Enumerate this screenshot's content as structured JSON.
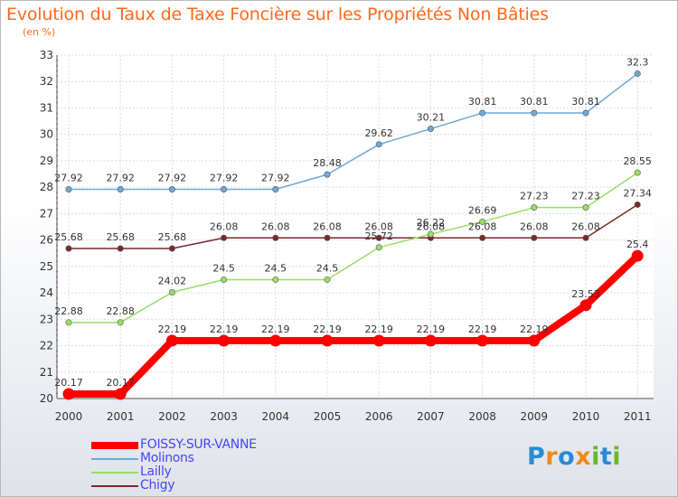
{
  "chart_data": {
    "type": "line",
    "title": "Evolution du Taux de Taxe Foncière sur les Propriétés Non Bâties",
    "ylabel": "(en %)",
    "xlabel": "",
    "ylim": [
      20,
      33
    ],
    "yticks": [
      "20",
      "21",
      "22",
      "23",
      "24",
      "25",
      "26",
      "27",
      "28",
      "29",
      "30",
      "31",
      "32",
      "33"
    ],
    "categories": [
      "2000",
      "2001",
      "2002",
      "2003",
      "2004",
      "2005",
      "2006",
      "2007",
      "2008",
      "2009",
      "2010",
      "2011"
    ],
    "grid": true,
    "legend_position": "bottom-left",
    "series": [
      {
        "name": "FOISSY-SUR-VANNE",
        "color": "#ff0000",
        "values": [
          20.17,
          20.17,
          22.19,
          22.19,
          22.19,
          22.19,
          22.19,
          22.19,
          22.19,
          22.19,
          23.53,
          25.4
        ],
        "labels": [
          "20.17",
          "20.17",
          "22.19",
          "22.19",
          "22.19",
          "22.19",
          "22.19",
          "22.19",
          "22.19",
          "22.19",
          "23.53",
          "25.4"
        ]
      },
      {
        "name": "Molinons",
        "color": "#6fa9d8",
        "values": [
          27.92,
          27.92,
          27.92,
          27.92,
          27.92,
          28.48,
          29.62,
          30.21,
          30.81,
          30.81,
          30.81,
          32.3
        ],
        "labels": [
          "27.92",
          "27.92",
          "27.92",
          "27.92",
          "27.92",
          "28.48",
          "29.62",
          "30.21",
          "30.81",
          "30.81",
          "30.81",
          "32.3"
        ]
      },
      {
        "name": "Lailly",
        "color": "#99dd66",
        "values": [
          22.88,
          22.88,
          24.02,
          24.5,
          24.5,
          24.5,
          25.72,
          26.22,
          26.69,
          27.23,
          27.23,
          28.55
        ],
        "labels": [
          "22.88",
          "22.88",
          "24.02",
          "24.5",
          "24.5",
          "24.5",
          "25.72",
          "26.22",
          "26.69",
          "27.23",
          "27.23",
          "28.55"
        ]
      },
      {
        "name": "Chigy",
        "color": "#7a2a2a",
        "values": [
          25.68,
          25.68,
          25.68,
          26.08,
          26.08,
          26.08,
          26.08,
          26.08,
          26.08,
          26.08,
          26.08,
          27.34
        ],
        "labels": [
          "25.68",
          "25.68",
          "25.68",
          "26.08",
          "26.08",
          "26.08",
          "26.08",
          "26.08",
          "26.08",
          "26.08",
          "26.08",
          "27.34"
        ]
      }
    ]
  },
  "logo": {
    "text": "Proxiti",
    "colors": [
      "#2a8ad4",
      "#ee8a1a",
      "#2a8ad4",
      "#ee8a1a",
      "#6ab82a",
      "#2a8ad4",
      "#6ab82a"
    ]
  }
}
